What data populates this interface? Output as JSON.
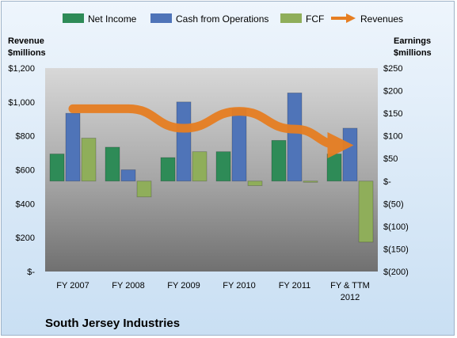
{
  "chart_data": {
    "type": "bar",
    "title": "South Jersey Industries",
    "categories": [
      "FY 2007",
      "FY 2008",
      "FY 2009",
      "FY 2010",
      "FY 2011",
      "FY & TTM 2012"
    ],
    "series": [
      {
        "name": "Net Income",
        "axis": "right",
        "color": "#2e8b57",
        "values": [
          60,
          75,
          52,
          65,
          90,
          60
        ]
      },
      {
        "name": "Cash from Operations",
        "axis": "right",
        "color": "#4f74b8",
        "values": [
          150,
          25,
          175,
          160,
          195,
          117
        ]
      },
      {
        "name": "FCF",
        "axis": "right",
        "color": "#8fae5a",
        "values": [
          95,
          -35,
          65,
          -10,
          0,
          -135
        ]
      },
      {
        "name": "Revenues",
        "axis": "left",
        "type": "line",
        "color": "#e67e22",
        "values": [
          960,
          960,
          845,
          945,
          840,
          745
        ]
      }
    ],
    "left_axis": {
      "label_line1": "Revenue",
      "label_line2": "$millions",
      "ylim": [
        0,
        1200
      ],
      "ticks": [
        "$1,200",
        "$1,000",
        "$800",
        "$600",
        "$400",
        "$200",
        "$-"
      ]
    },
    "right_axis": {
      "label_line1": "Earnings",
      "label_line2": "$millions",
      "ylim": [
        -200,
        250
      ],
      "ticks": [
        "$250",
        "$200",
        "$150",
        "$100",
        "$50",
        "$-",
        "$(50)",
        "$(100)",
        "$(150)",
        "$(200)"
      ]
    },
    "legend_placement": "top",
    "grid": false
  }
}
